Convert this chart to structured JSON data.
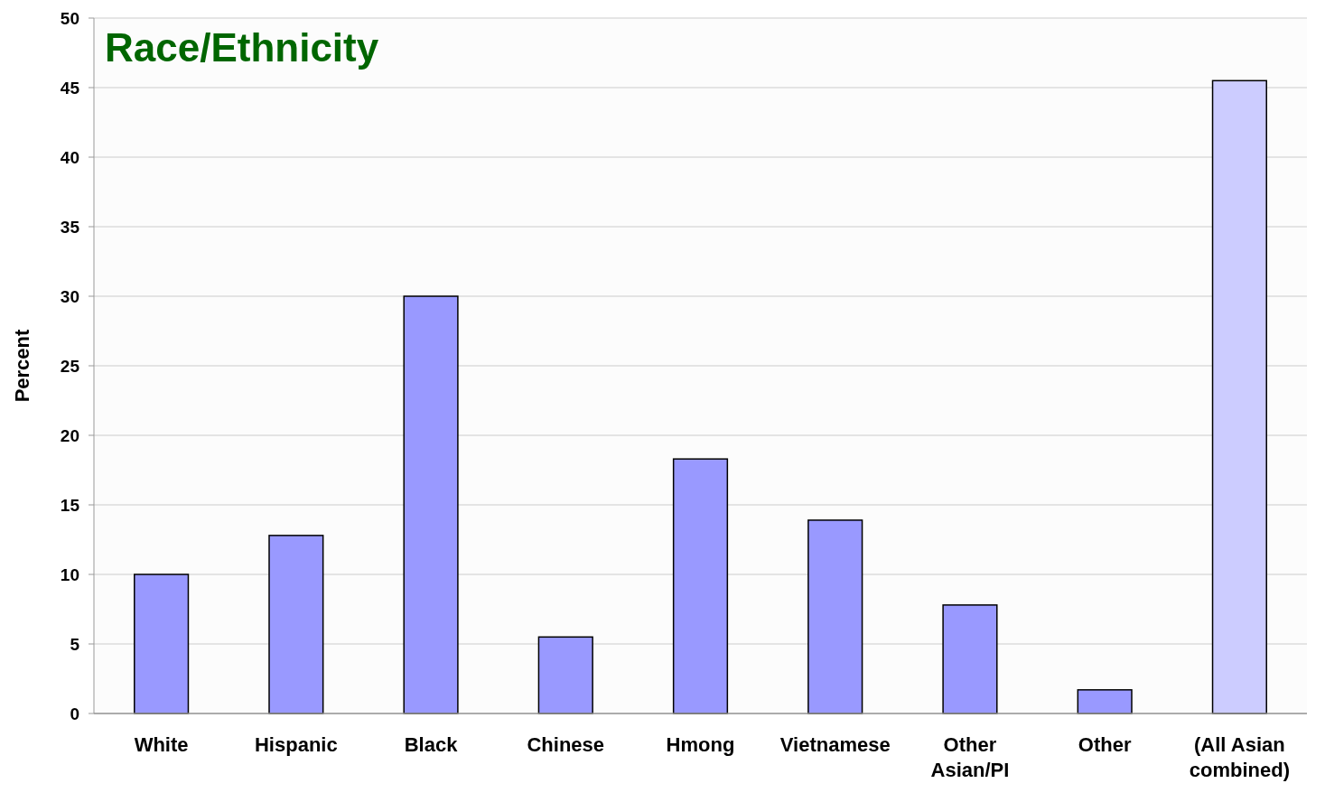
{
  "chart_data": {
    "type": "bar",
    "title": "Race/Ethnicity",
    "ylabel": "Percent",
    "categories": [
      "White",
      "Hispanic",
      "Black",
      "Chinese",
      "Hmong",
      "Vietnamese",
      "Other Asian/PI",
      "Other",
      "(All Asian combined)"
    ],
    "values": [
      10.0,
      12.8,
      30.0,
      5.5,
      18.3,
      13.9,
      7.8,
      1.7,
      45.5
    ],
    "colors": [
      "#9999ff",
      "#9999ff",
      "#9999ff",
      "#9999ff",
      "#9999ff",
      "#9999ff",
      "#9999ff",
      "#9999ff",
      "#ccccff"
    ],
    "ylim": [
      0,
      50
    ],
    "yticks": [
      0,
      5,
      10,
      15,
      20,
      25,
      30,
      35,
      40,
      45,
      50
    ],
    "grid": "y"
  }
}
